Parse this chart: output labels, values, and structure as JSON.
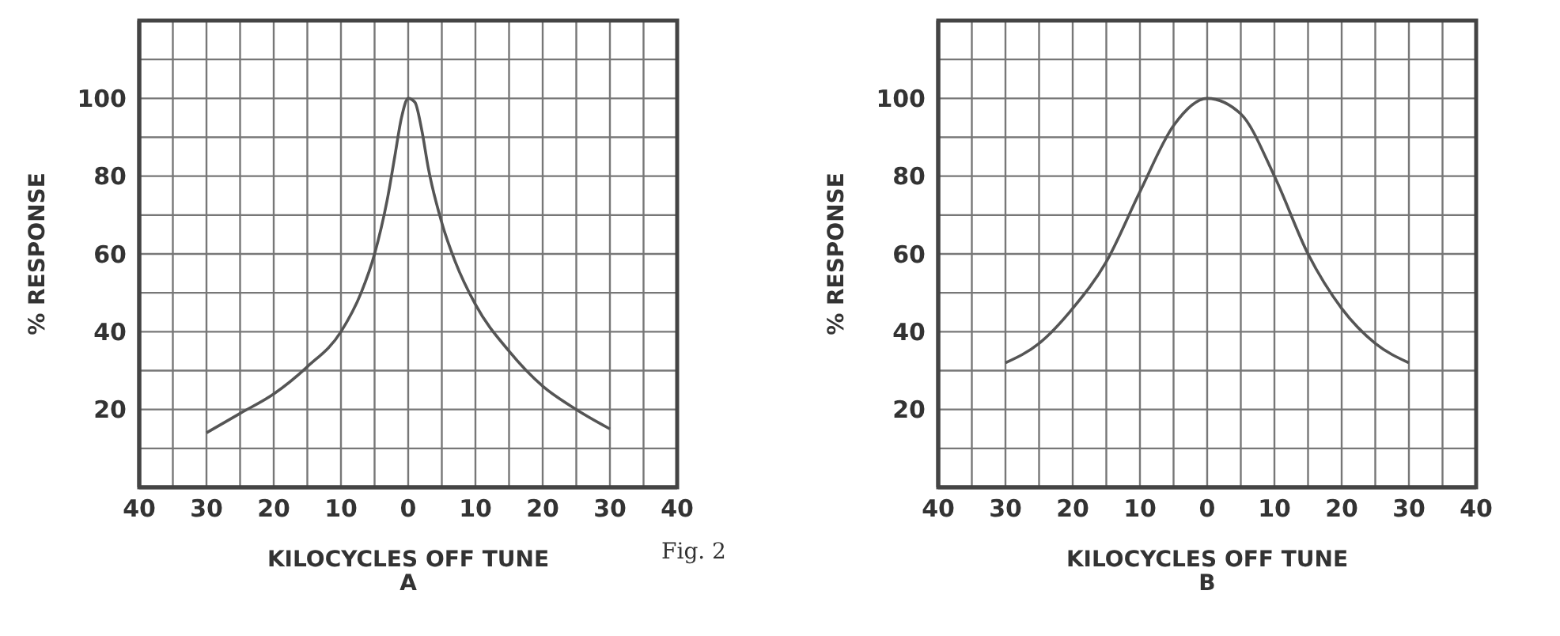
{
  "chart_data": [
    {
      "type": "line",
      "title": "A",
      "xlabel": "KILOCYCLES OFF TUNE",
      "ylabel": "% RESPONSE",
      "annotations": [
        "Fig. 2"
      ],
      "xlim": [
        -40,
        40
      ],
      "ylim": [
        0,
        120
      ],
      "xticks": [
        {
          "value": -40,
          "label": "40"
        },
        {
          "value": -35,
          "label": null
        },
        {
          "value": -30,
          "label": "30"
        },
        {
          "value": -25,
          "label": null
        },
        {
          "value": -20,
          "label": "20"
        },
        {
          "value": -15,
          "label": null
        },
        {
          "value": -10,
          "label": "10"
        },
        {
          "value": -5,
          "label": null
        },
        0,
        {
          "value": 5,
          "label": null
        },
        10,
        {
          "value": 15,
          "label": null
        },
        20,
        {
          "value": 25,
          "label": null
        },
        30,
        {
          "value": 35,
          "label": null
        },
        40
      ],
      "yticks": [
        {
          "value": 0,
          "label": null
        },
        {
          "value": 10,
          "label": null
        },
        20,
        {
          "value": 30,
          "label": null
        },
        40,
        {
          "value": 50,
          "label": null
        },
        60,
        {
          "value": 70,
          "label": null
        },
        80,
        {
          "value": 90,
          "label": null
        },
        100,
        {
          "value": 110,
          "label": null
        },
        {
          "value": 120,
          "label": null
        }
      ],
      "grid": true,
      "marker": "none",
      "series": [
        {
          "color": "#555555",
          "x": [
            -30,
            -25,
            -20,
            -15,
            -10,
            -7,
            -5,
            -3,
            -2,
            -1,
            0,
            1,
            2,
            3,
            5,
            7,
            10,
            15,
            20,
            25,
            30
          ],
          "values": [
            14,
            19,
            24,
            31,
            40,
            50,
            60,
            75,
            85,
            95,
            100,
            99,
            92,
            82,
            68,
            58,
            47,
            35,
            26,
            20,
            15
          ]
        }
      ]
    },
    {
      "type": "line",
      "title": "B",
      "xlabel": "KILOCYCLES OFF TUNE",
      "ylabel": "% RESPONSE",
      "xlim": [
        -40,
        40
      ],
      "ylim": [
        0,
        120
      ],
      "xticks": [
        {
          "value": -40,
          "label": "40"
        },
        {
          "value": -35,
          "label": null
        },
        {
          "value": -30,
          "label": "30"
        },
        {
          "value": -25,
          "label": null
        },
        {
          "value": -20,
          "label": "20"
        },
        {
          "value": -15,
          "label": null
        },
        {
          "value": -10,
          "label": "10"
        },
        {
          "value": -5,
          "label": null
        },
        0,
        {
          "value": 5,
          "label": null
        },
        10,
        {
          "value": 15,
          "label": null
        },
        20,
        {
          "value": 25,
          "label": null
        },
        30,
        {
          "value": 35,
          "label": null
        },
        40
      ],
      "yticks": [
        {
          "value": 0,
          "label": null
        },
        {
          "value": 10,
          "label": null
        },
        20,
        {
          "value": 30,
          "label": null
        },
        40,
        {
          "value": 50,
          "label": null
        },
        60,
        {
          "value": 70,
          "label": null
        },
        80,
        {
          "value": 90,
          "label": null
        },
        100,
        {
          "value": 110,
          "label": null
        },
        {
          "value": 120,
          "label": null
        }
      ],
      "grid": true,
      "marker": "none",
      "series": [
        {
          "color": "#555555",
          "x": [
            -30,
            -25,
            -20,
            -15,
            -10,
            -5,
            0,
            5,
            10,
            15,
            20,
            25,
            30
          ],
          "values": [
            32,
            37,
            46,
            58,
            76,
            93,
            100,
            96,
            80,
            60,
            46,
            37,
            32
          ]
        }
      ]
    }
  ]
}
